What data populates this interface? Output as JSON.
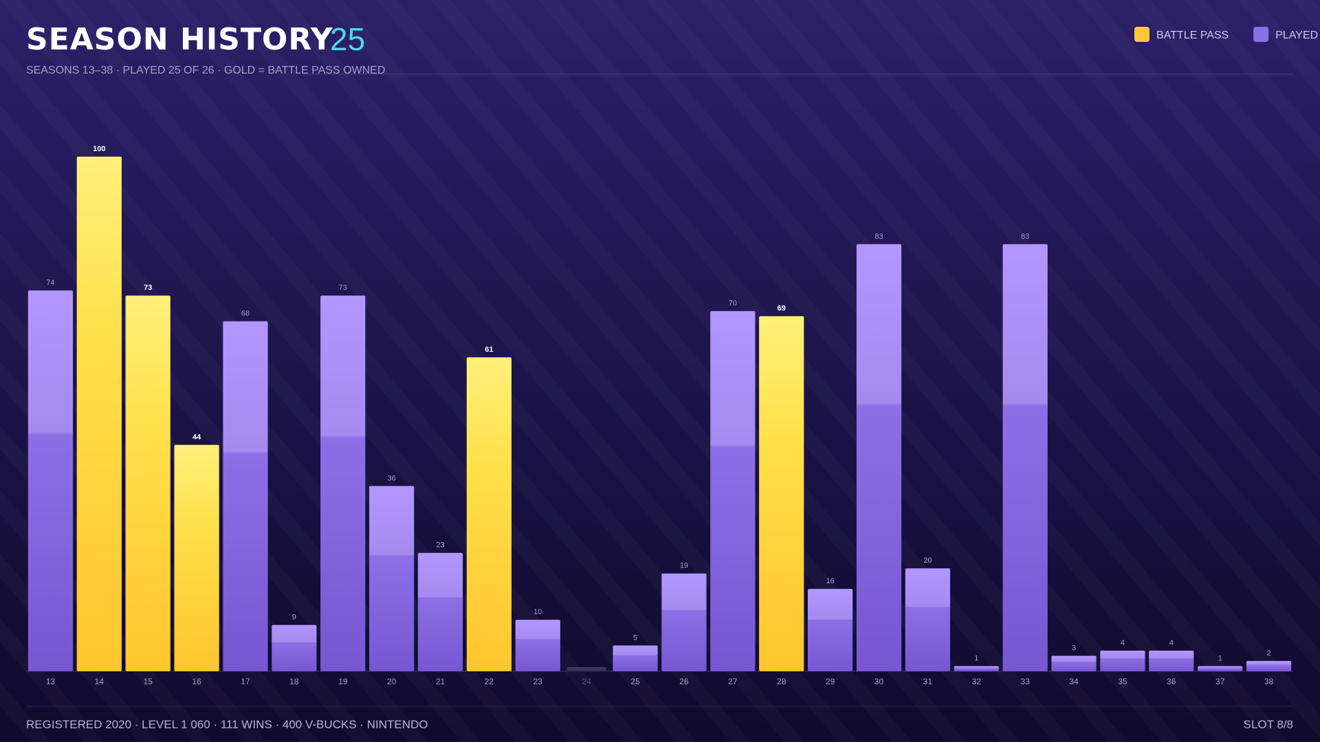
{
  "chart_data": {
    "type": "bar",
    "title": "SEASON HISTORY",
    "title_count": "25",
    "subtitle": "SEASONS 13–38 · PLAYED 25 OF 26 · GOLD = BATTLE PASS OWNED",
    "categories": [
      "13",
      "14",
      "15",
      "16",
      "17",
      "18",
      "19",
      "20",
      "21",
      "22",
      "23",
      "24",
      "25",
      "26",
      "27",
      "28",
      "29",
      "30",
      "31",
      "32",
      "33",
      "34",
      "35",
      "36",
      "37",
      "38"
    ],
    "values": [
      74,
      100,
      73,
      44,
      68,
      9,
      73,
      36,
      23,
      61,
      10,
      null,
      5,
      19,
      70,
      69,
      16,
      83,
      20,
      1,
      83,
      3,
      4,
      4,
      1,
      2
    ],
    "battle_pass": [
      false,
      true,
      true,
      true,
      false,
      false,
      false,
      false,
      false,
      true,
      false,
      false,
      false,
      false,
      false,
      true,
      false,
      false,
      false,
      false,
      false,
      false,
      false,
      false,
      false,
      false
    ],
    "legend": [
      {
        "name": "BATTLE PASS",
        "color": "#ffc933"
      },
      {
        "name": "PLAYED",
        "color": "#8b6fe8"
      }
    ],
    "ylim": [
      0,
      100
    ],
    "footer": "REGISTERED 2020 · LEVEL 1 060 · 111 WINS · 400 V-BUCKS · NINTENDO",
    "slot": "SLOT 8/8"
  }
}
